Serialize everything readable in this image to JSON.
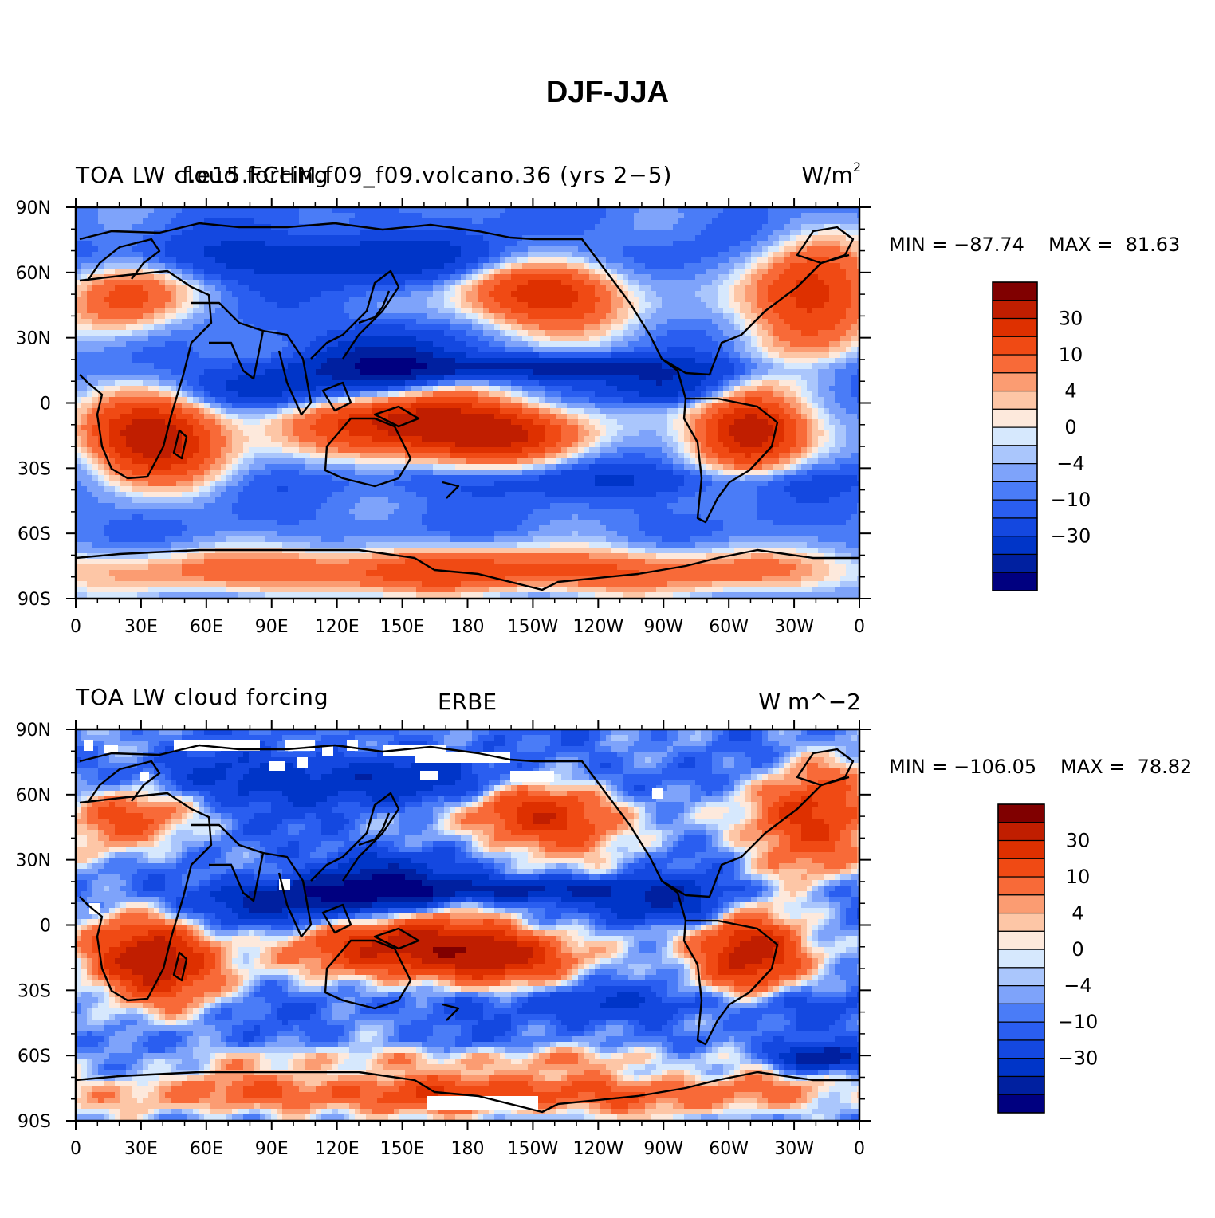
{
  "figure": {
    "title": "DJF-JJA"
  },
  "palette": {
    "colors": [
      "#000080",
      "#0020a0",
      "#0035c8",
      "#1448e0",
      "#2a5ef0",
      "#4a7cf7",
      "#7ea3fa",
      "#aac6fc",
      "#d6e8fd",
      "#fde9dc",
      "#fdc6a6",
      "#fb9c72",
      "#f86a38",
      "#f04a14",
      "#de3000",
      "#c01e00",
      "#800000"
    ],
    "colorbar_labels": [
      "30",
      "10",
      "4",
      "0",
      "−4",
      "−10",
      "−30"
    ],
    "missing_color": "#ffffff",
    "coast_color": "#000000"
  },
  "axes": {
    "x_tick_labels": [
      "0",
      "30E",
      "60E",
      "90E",
      "120E",
      "150E",
      "180",
      "150W",
      "120W",
      "90W",
      "60W",
      "30W",
      "0"
    ],
    "y_tick_labels": [
      "90N",
      "60N",
      "30N",
      "0",
      "30S",
      "60S",
      "90S"
    ]
  },
  "panels": [
    {
      "id": "model",
      "left_label": "TOA LW cloud forcing",
      "left_label_overlap": "f.e15.FCHM.f09_f09.volcano.36 (yrs 2−5)",
      "center_label": "",
      "right_label": "W/m",
      "right_label_sup": "2",
      "min_text": "MIN = −87.74",
      "max_text": "MAX =  81.63",
      "min_value": -87.74,
      "max_value": 81.63
    },
    {
      "id": "obs",
      "left_label": "TOA LW cloud forcing",
      "left_label_overlap": "",
      "center_label": "ERBE",
      "right_label": "W m^−2",
      "right_label_sup": "",
      "min_text": "MIN = −106.05",
      "max_text": "MAX =  78.82",
      "min_value": -106.05,
      "max_value": 78.82
    }
  ]
}
